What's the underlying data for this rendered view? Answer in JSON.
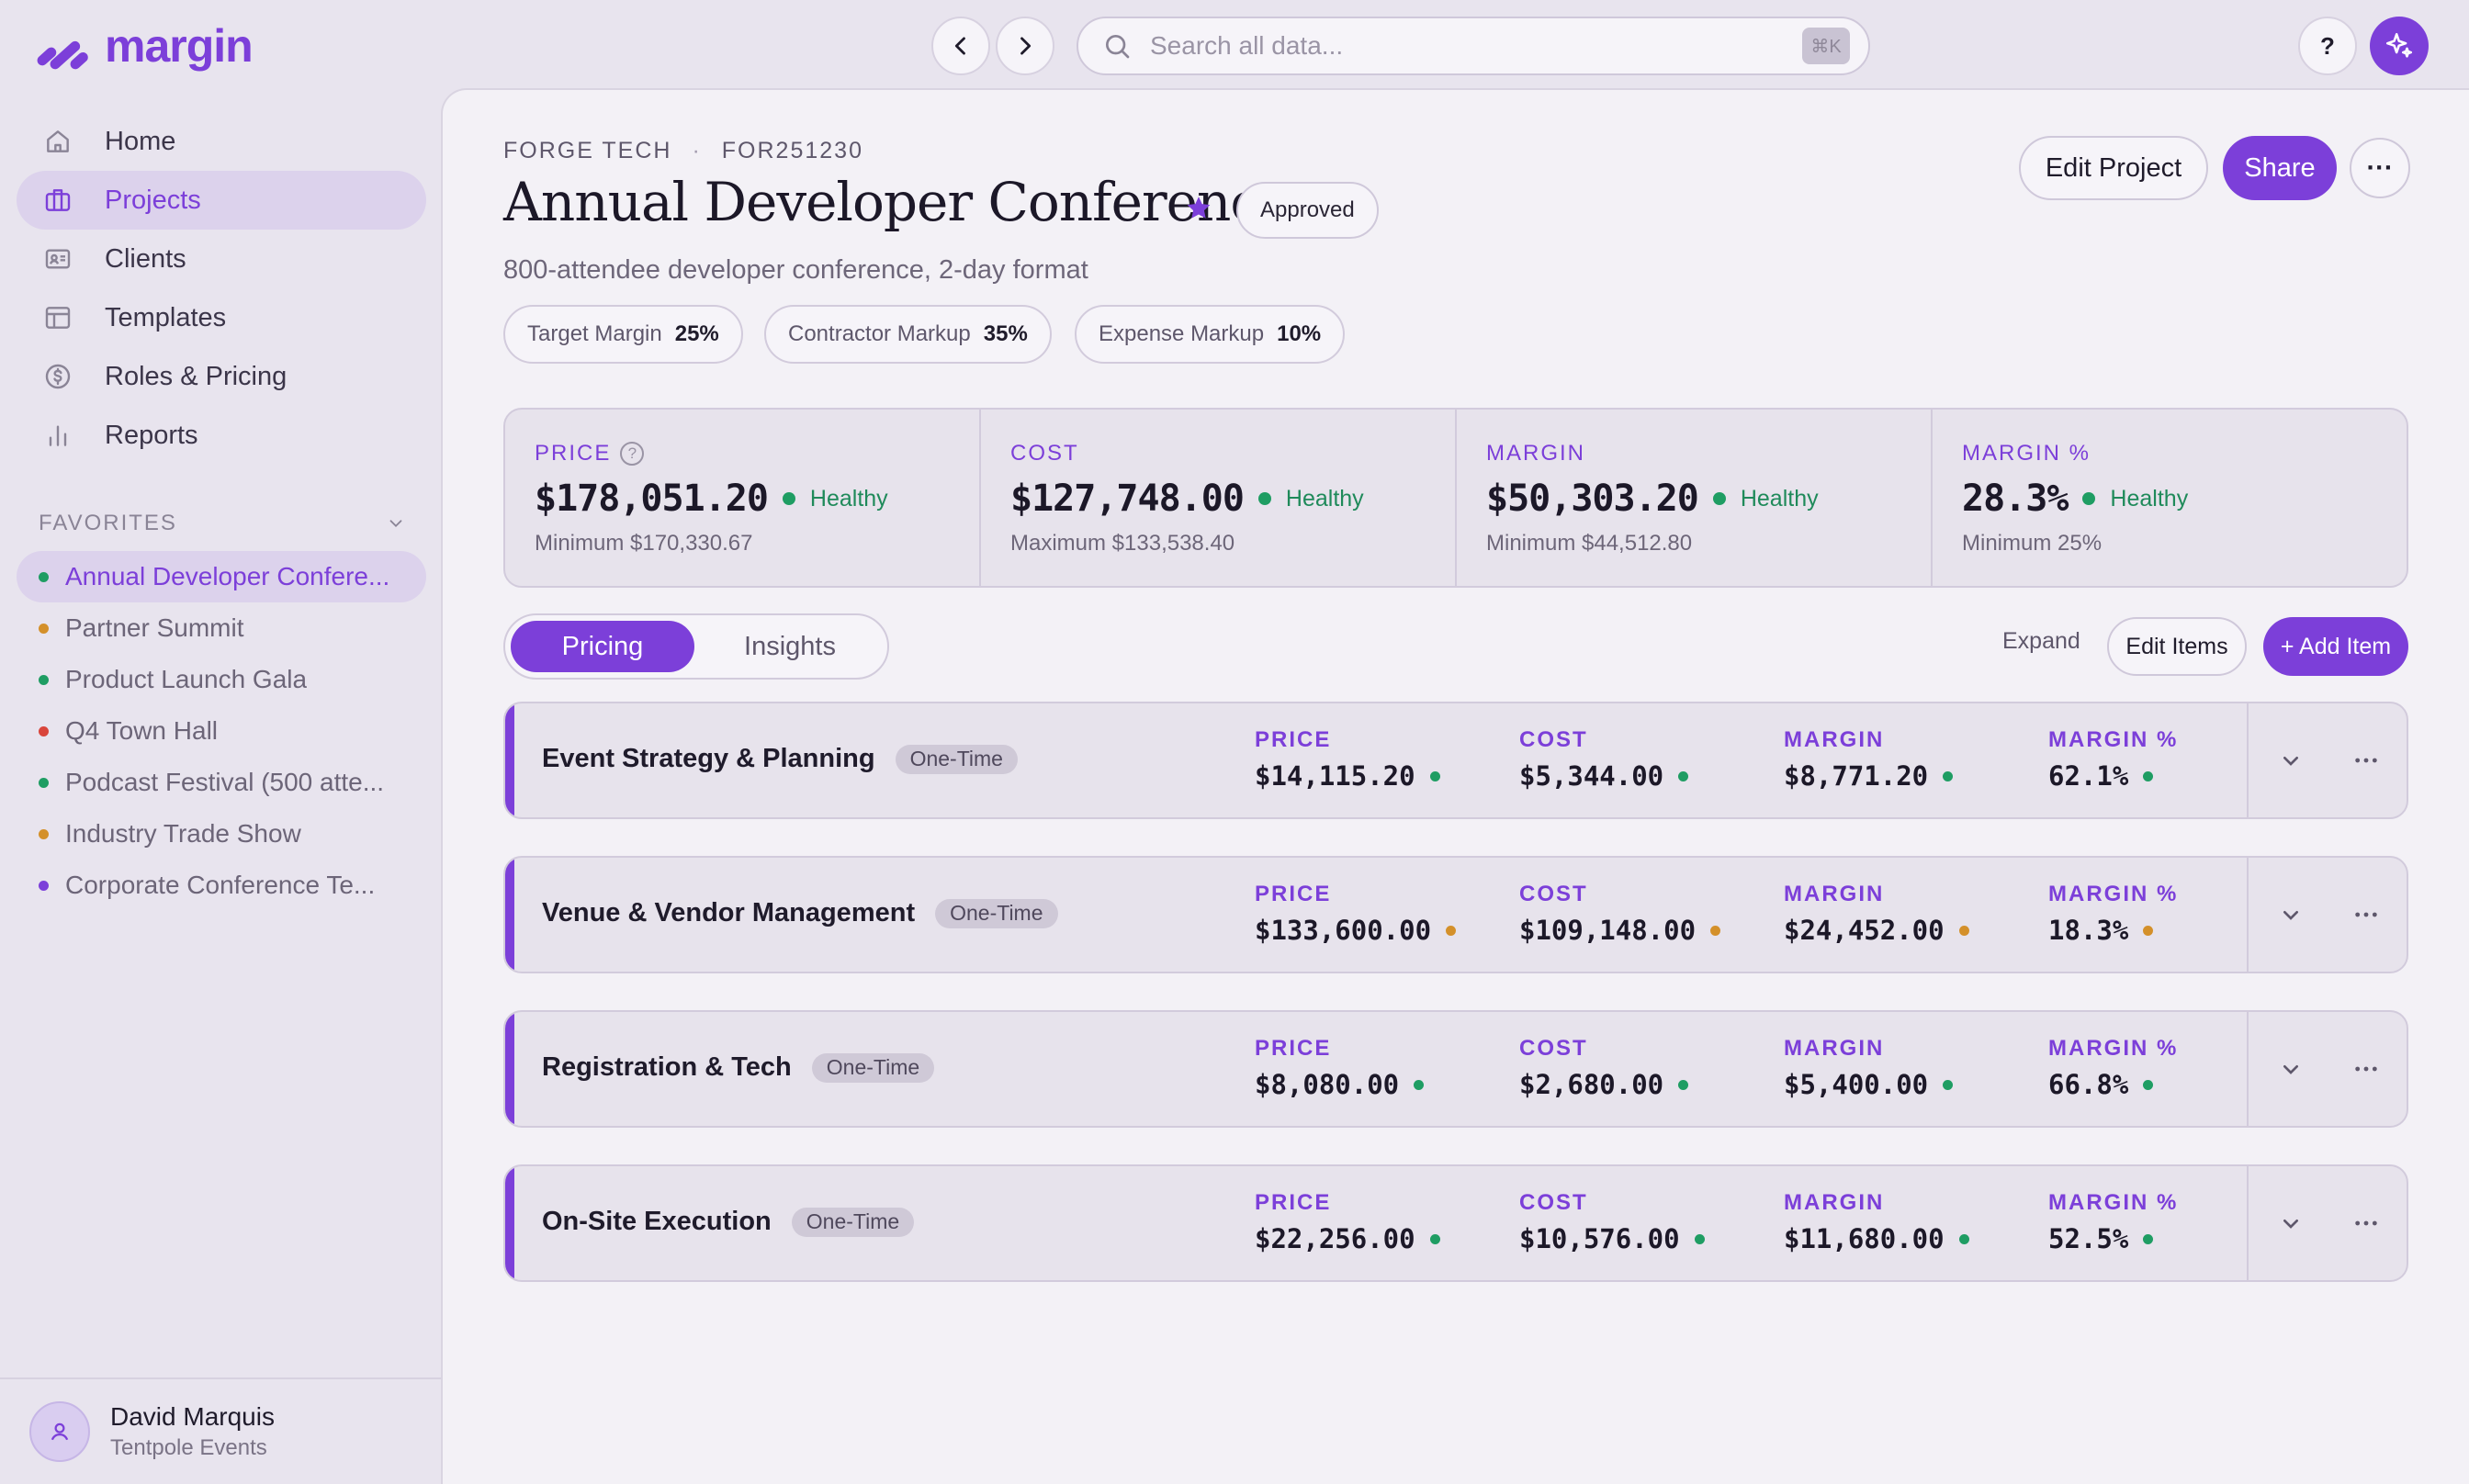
{
  "app": {
    "name": "margin"
  },
  "search": {
    "placeholder": "Search all data...",
    "shortcut": "⌘K"
  },
  "topbar": {
    "help_label": "?"
  },
  "sidebar": {
    "items": [
      {
        "label": "Home",
        "icon": "home-icon"
      },
      {
        "label": "Projects",
        "icon": "briefcase-icon",
        "active": true
      },
      {
        "label": "Clients",
        "icon": "contact-card-icon"
      },
      {
        "label": "Templates",
        "icon": "layout-icon"
      },
      {
        "label": "Roles & Pricing",
        "icon": "dollar-circle-icon"
      },
      {
        "label": "Reports",
        "icon": "bar-chart-icon"
      }
    ],
    "favorites_label": "FAVORITES",
    "favorites": [
      {
        "label": "Annual Developer Confere...",
        "color": "#1f9d63",
        "active": true
      },
      {
        "label": "Partner Summit",
        "color": "#d4902a"
      },
      {
        "label": "Product Launch Gala",
        "color": "#1f9d63"
      },
      {
        "label": "Q4 Town Hall",
        "color": "#d9453b"
      },
      {
        "label": "Podcast Festival (500 atte...",
        "color": "#1f9d63"
      },
      {
        "label": "Industry Trade Show",
        "color": "#d4902a"
      },
      {
        "label": "Corporate Conference Te...",
        "color": "#7c3fd9"
      }
    ],
    "user": {
      "name": "David Marquis",
      "org": "Tentpole Events"
    }
  },
  "project": {
    "client": "FORGE TECH",
    "separator": "·",
    "code": "FOR251230",
    "title": "Annual Developer Conference",
    "status": "Approved",
    "description": "800-attendee developer conference, 2-day format",
    "settings": [
      {
        "label": "Target Margin",
        "value": "25%"
      },
      {
        "label": "Contractor Markup",
        "value": "35%"
      },
      {
        "label": "Expense Markup",
        "value": "10%"
      }
    ],
    "actions": {
      "edit": "Edit Project",
      "share": "Share",
      "more": "···"
    }
  },
  "summary": [
    {
      "label": "PRICE",
      "value": "$178,051.20",
      "health": "Healthy",
      "sub": "Minimum $170,330.67",
      "help": "?"
    },
    {
      "label": "COST",
      "value": "$127,748.00",
      "health": "Healthy",
      "sub": "Maximum $133,538.40"
    },
    {
      "label": "MARGIN",
      "value": "$50,303.20",
      "health": "Healthy",
      "sub": "Minimum $44,512.80"
    },
    {
      "label": "MARGIN %",
      "value": "28.3%",
      "health": "Healthy",
      "sub": "Minimum 25%"
    }
  ],
  "tabs": {
    "pricing": "Pricing",
    "insights": "Insights"
  },
  "list_actions": {
    "expand": "Expand",
    "edit_items": "Edit Items",
    "add_item": "+ Add Item"
  },
  "metric_labels": {
    "price": "PRICE",
    "cost": "COST",
    "margin": "MARGIN",
    "margin_pct": "MARGIN %"
  },
  "colors": {
    "accent": "#7c3fd9",
    "healthy": "#1f9d63",
    "warning": "#d4902a"
  },
  "line_items": [
    {
      "name": "Event Strategy & Planning",
      "tag": "One-Time",
      "price": "$14,115.20",
      "cost": "$5,344.00",
      "margin": "$8,771.20",
      "margin_pct": "62.1%",
      "status_color": "#1f9d63"
    },
    {
      "name": "Venue & Vendor Management",
      "tag": "One-Time",
      "price": "$133,600.00",
      "cost": "$109,148.00",
      "margin": "$24,452.00",
      "margin_pct": "18.3%",
      "status_color": "#d4902a"
    },
    {
      "name": "Registration & Tech",
      "tag": "One-Time",
      "price": "$8,080.00",
      "cost": "$2,680.00",
      "margin": "$5,400.00",
      "margin_pct": "66.8%",
      "status_color": "#1f9d63"
    },
    {
      "name": "On-Site Execution",
      "tag": "One-Time",
      "price": "$22,256.00",
      "cost": "$10,576.00",
      "margin": "$11,680.00",
      "margin_pct": "52.5%",
      "status_color": "#1f9d63"
    }
  ]
}
